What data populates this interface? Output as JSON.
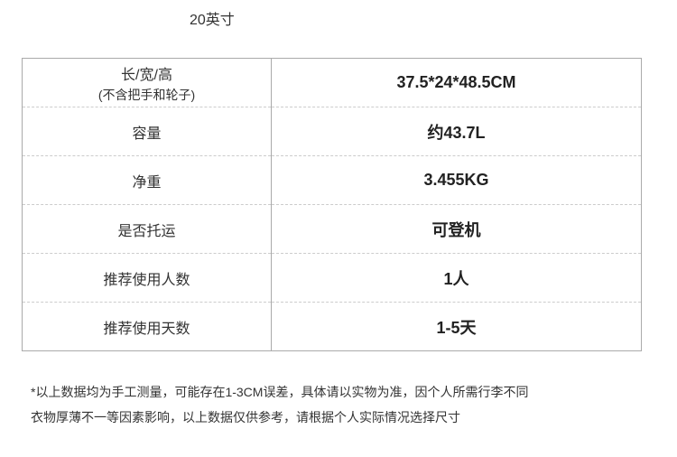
{
  "title": "20英寸",
  "rows": [
    {
      "label": "长/宽/高",
      "sublabel": "(不含把手和轮子)",
      "value": "37.5*24*48.5CM"
    },
    {
      "label": "容量",
      "value": "约43.7L"
    },
    {
      "label": "净重",
      "value": "3.455KG"
    },
    {
      "label": "是否托运",
      "value": "可登机"
    },
    {
      "label": "推荐使用人数",
      "value": "1人"
    },
    {
      "label": "推荐使用天数",
      "value": "1-5天"
    }
  ],
  "note": {
    "line1": "*以上数据均为手工测量，可能存在1-3CM误差，具体请以实物为准，因个人所需行李不同",
    "line2": "衣物厚薄不一等因素影响，以上数据仅供参考，请根据个人实际情况选择尺寸"
  }
}
